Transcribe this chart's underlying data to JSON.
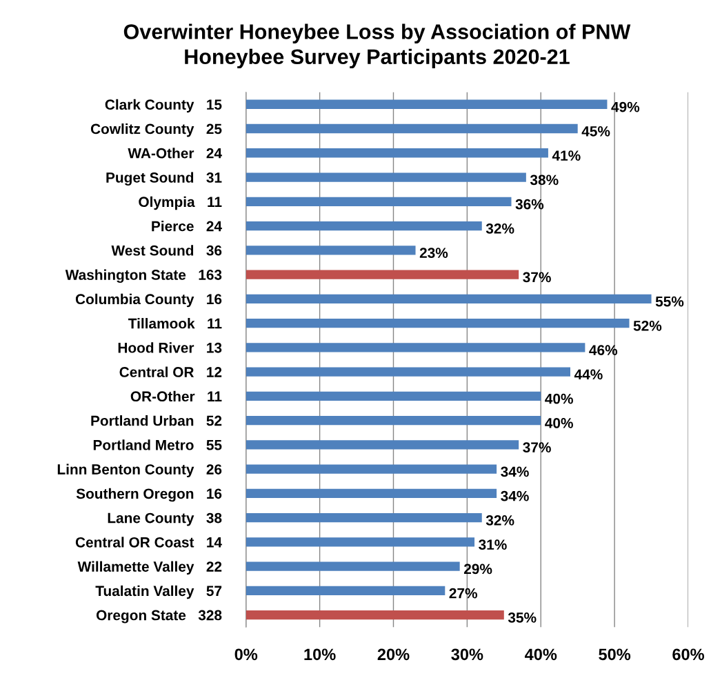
{
  "chart_data": {
    "type": "bar",
    "orientation": "horizontal",
    "title": "Overwinter Honeybee Loss by Association of PNW\nHoneybee Survey Participants 2020-21",
    "categories": [
      "Clark County   15",
      "Cowlitz County   25",
      "WA-Other   24",
      "Puget Sound   31",
      "Olympia   11",
      "Pierce   24",
      "West Sound   36",
      "Washington State   163",
      "Columbia County   16",
      "Tillamook   11",
      "Hood River   13",
      "Central OR   12",
      "OR-Other   11",
      "Portland Urban   52",
      "Portland Metro   55",
      "Linn Benton County   26",
      "Southern Oregon   16",
      "Lane County   38",
      "Central OR Coast   14",
      "Willamette Valley   22",
      "Tualatin Valley   57",
      "Oregon State   328"
    ],
    "values": [
      49,
      45,
      41,
      38,
      36,
      32,
      23,
      37,
      55,
      52,
      46,
      44,
      40,
      40,
      37,
      34,
      34,
      32,
      31,
      29,
      27,
      35
    ],
    "value_labels": [
      "49%",
      "45%",
      "41%",
      "38%",
      "36%",
      "32%",
      "23%",
      "37%",
      "55%",
      "52%",
      "46%",
      "44%",
      "40%",
      "40%",
      "37%",
      "34%",
      "34%",
      "32%",
      "31%",
      "29%",
      "27%",
      "35%"
    ],
    "colors": [
      "#4f81bd",
      "#4f81bd",
      "#4f81bd",
      "#4f81bd",
      "#4f81bd",
      "#4f81bd",
      "#4f81bd",
      "#c0504d",
      "#4f81bd",
      "#4f81bd",
      "#4f81bd",
      "#4f81bd",
      "#4f81bd",
      "#4f81bd",
      "#4f81bd",
      "#4f81bd",
      "#4f81bd",
      "#4f81bd",
      "#4f81bd",
      "#4f81bd",
      "#4f81bd",
      "#c0504d"
    ],
    "xlim": [
      0,
      60
    ],
    "xticks": [
      {
        "value": 0,
        "label": "0%"
      },
      {
        "value": 10,
        "label": "10%"
      },
      {
        "value": 20,
        "label": "20%"
      },
      {
        "value": 30,
        "label": "30%"
      },
      {
        "value": 40,
        "label": "40%"
      },
      {
        "value": 50,
        "label": "50%"
      },
      {
        "value": 60,
        "label": "60%"
      }
    ],
    "grid": "x",
    "legend": false
  }
}
